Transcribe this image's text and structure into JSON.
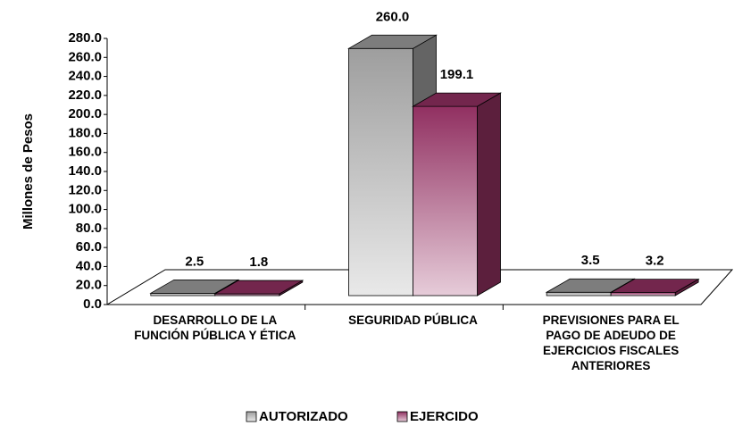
{
  "chart_data": {
    "type": "bar3d",
    "y_label": "Millones de Pesos",
    "categories": [
      "DESARROLLO DE LA FUNCIÓN PÚBLICA Y ÉTICA",
      "SEGURIDAD PÚBLICA",
      "PREVISIONES PARA EL PAGO DE ADEUDO DE EJERCICIOS FISCALES ANTERIORES"
    ],
    "series": [
      {
        "name": "AUTORIZADO",
        "color": "#a6a6a6",
        "values": [
          2.5,
          260,
          3.5
        ],
        "value_labels": [
          "2.5",
          "260.0",
          "3.5"
        ]
      },
      {
        "name": "EJERCIDO",
        "color": "#993366",
        "values": [
          1.8,
          199.1,
          3.2
        ],
        "value_labels": [
          "1.8",
          "199.1",
          "3.2"
        ]
      }
    ],
    "ylim": [
      0,
      280
    ],
    "yticks": [
      {
        "value": 0,
        "label": "0.0"
      },
      {
        "value": 20,
        "label": "20.0"
      },
      {
        "value": 40,
        "label": "40.0"
      },
      {
        "value": 60,
        "label": "60.0"
      },
      {
        "value": 80,
        "label": "80.0"
      },
      {
        "value": 100,
        "label": "100.0"
      },
      {
        "value": 120,
        "label": "120.0"
      },
      {
        "value": 140,
        "label": "140.0"
      },
      {
        "value": 160,
        "label": "160.0"
      },
      {
        "value": 180,
        "label": "180.0"
      },
      {
        "value": 200,
        "label": "200.0"
      },
      {
        "value": 220,
        "label": "220.0"
      },
      {
        "value": 240,
        "label": "240.0"
      },
      {
        "value": 260,
        "label": "260.0"
      },
      {
        "value": 280,
        "label": "280.0"
      }
    ],
    "legend": "bottom"
  }
}
